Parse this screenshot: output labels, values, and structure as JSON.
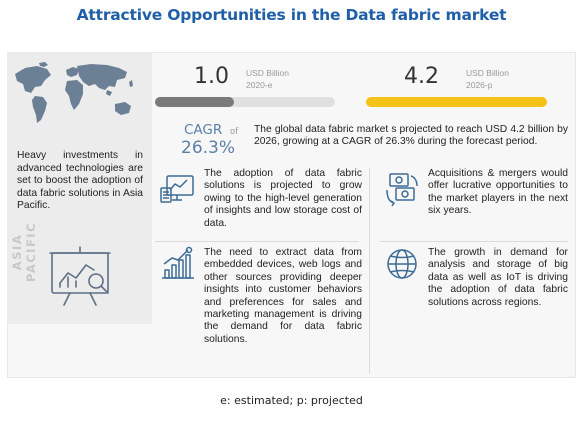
{
  "title": "Attractive Opportunities in the Data fabric market",
  "stats": {
    "start": {
      "value": "1.0",
      "unit": "USD Billion",
      "year": "2020-e",
      "color": "#7a7a7a"
    },
    "end": {
      "value": "4.2",
      "unit": "USD Billion",
      "year": "2026-p",
      "color": "#f5c318"
    }
  },
  "cagr": {
    "label": "CAGR",
    "of": "of",
    "value": "26.3%"
  },
  "summary": "The global data fabric market s projected to reach USD 4.2 billion by 2026, growing at a CAGR of 26.3% during the forecast period.",
  "sidebar": {
    "text": "Heavy investments in advanced technologies are set to boost the adoption of data fabric solutions in Asia Pacific.",
    "region": "ASIA PACIFIC"
  },
  "items": [
    {
      "icon": "analytics-monitor-icon",
      "text": "The adoption of data fabric solutions is projected to grow owing to the high-level generation of insights and low storage cost of data."
    },
    {
      "icon": "money-exchange-icon",
      "text": "Acquisitions & mergers would offer lucrative opportunities to the market players in the next six years."
    },
    {
      "icon": "growth-bar-chart-icon",
      "text": "The need to extract data from embedded devices, web logs and other sources providing deeper insights into customer behaviors and preferences for sales and marketing management is driving the demand for data fabric solutions."
    },
    {
      "icon": "globe-network-icon",
      "text": "The growth in demand for analysis and storage of big data as well as IoT is driving the adoption of data fabric solutions across regions."
    }
  ],
  "footnote": "e: estimated; p: projected",
  "colors": {
    "title": "#1f5fa8",
    "cagr": "#5a80aa",
    "accent": "#f5c318",
    "bar_grey": "#7a7a7a"
  }
}
